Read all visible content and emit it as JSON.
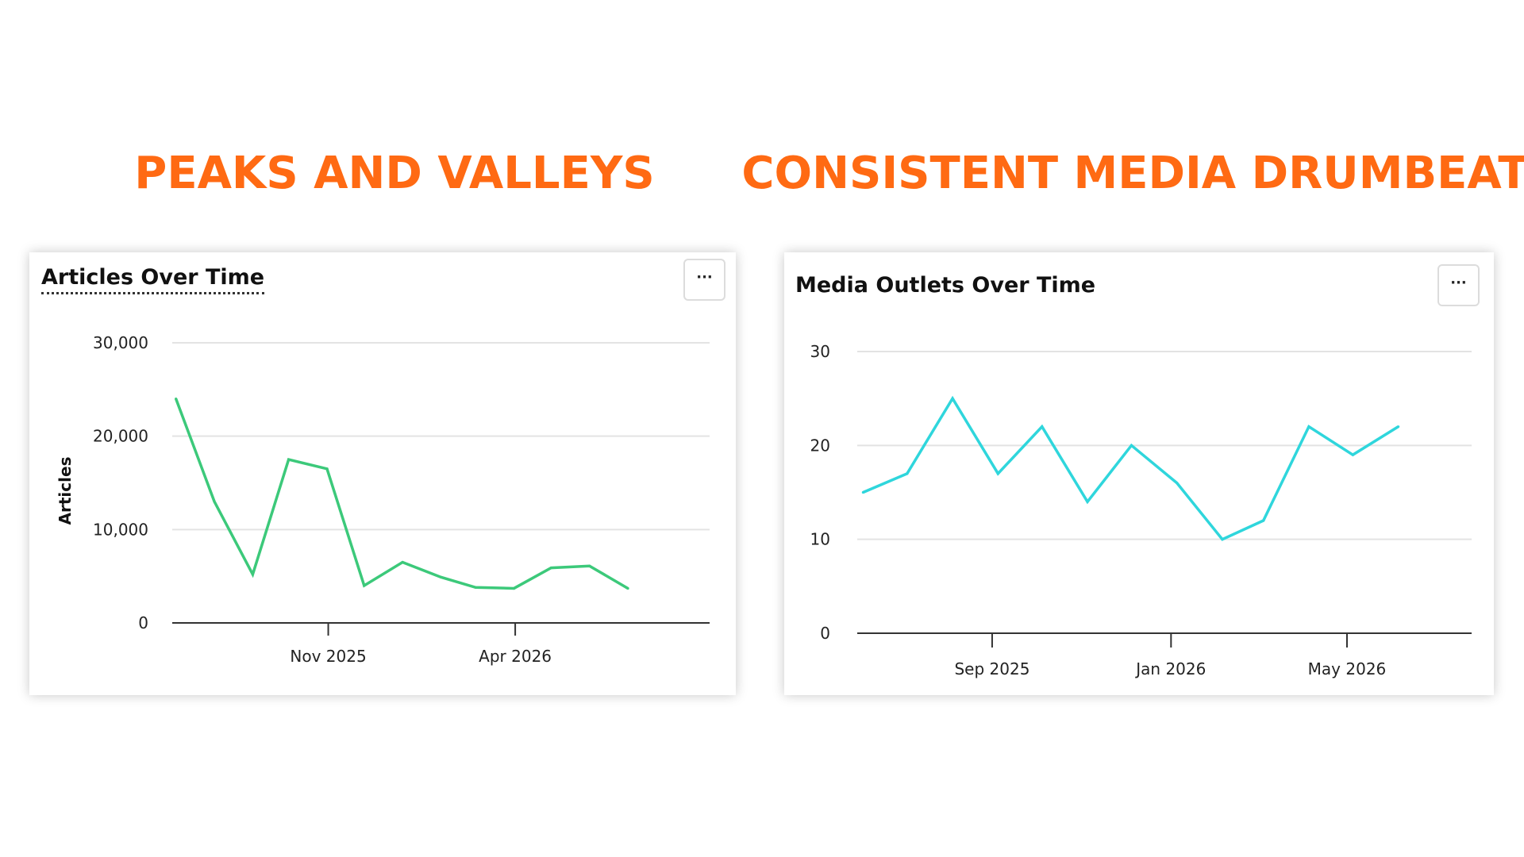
{
  "headlines": {
    "left": "PEAKS AND VALLEYS",
    "right": "CONSISTENT MEDIA DRUMBEAT"
  },
  "colors": {
    "headline": "#ff6a13",
    "grid": "#e3e3e3",
    "axis": "#333333"
  },
  "chart_data": [
    {
      "type": "line",
      "title": "Articles Over Time",
      "menu_label": "···",
      "ylabel": "Articles",
      "xlabel": "",
      "ylim": [
        0,
        30000
      ],
      "y_ticks": [
        0,
        10000,
        20000,
        30000
      ],
      "y_tick_labels": [
        "0",
        "10,000",
        "20,000",
        "30,000"
      ],
      "x_ticks": [
        "2025-11",
        "2026-04"
      ],
      "x_tick_labels": [
        "Nov 2025",
        "Apr 2026"
      ],
      "x_range": [
        "2025-06-28",
        "2026-09-05"
      ],
      "grid": true,
      "legend": "none",
      "series": [
        {
          "color": "#3cc97a",
          "points": [
            {
              "x": "2025-07-01",
              "y": 24000
            },
            {
              "x": "2025-08-01",
              "y": 13000
            },
            {
              "x": "2025-09-01",
              "y": 5200
            },
            {
              "x": "2025-09-30",
              "y": 17500
            },
            {
              "x": "2025-10-31",
              "y": 16500
            },
            {
              "x": "2025-11-30",
              "y": 4000
            },
            {
              "x": "2025-12-31",
              "y": 6500
            },
            {
              "x": "2026-01-31",
              "y": 4900
            },
            {
              "x": "2026-02-28",
              "y": 3800
            },
            {
              "x": "2026-03-31",
              "y": 3700
            },
            {
              "x": "2026-04-30",
              "y": 5900
            },
            {
              "x": "2026-05-31",
              "y": 6100
            },
            {
              "x": "2026-07-01",
              "y": 3700
            }
          ]
        }
      ]
    },
    {
      "type": "line",
      "title": "Media Outlets Over Time",
      "menu_label": "···",
      "ylabel": "",
      "xlabel": "",
      "ylim": [
        0,
        30
      ],
      "y_ticks": [
        0,
        10,
        20,
        30
      ],
      "y_tick_labels": [
        "0",
        "10",
        "20",
        "30"
      ],
      "x_ticks": [
        "2025-09",
        "2026-01",
        "2026-05"
      ],
      "x_tick_labels": [
        "Sep 2025",
        "Jan 2026",
        "May 2026"
      ],
      "x_range": [
        "2025-06-01",
        "2026-07-25"
      ],
      "grid": true,
      "legend": "none",
      "series": [
        {
          "color": "#2fd6dc",
          "points": [
            {
              "x": "2025-06-05",
              "y": 15
            },
            {
              "x": "2025-07-05",
              "y": 17
            },
            {
              "x": "2025-08-05",
              "y": 25
            },
            {
              "x": "2025-09-05",
              "y": 17
            },
            {
              "x": "2025-10-05",
              "y": 22
            },
            {
              "x": "2025-11-05",
              "y": 14
            },
            {
              "x": "2025-12-05",
              "y": 20
            },
            {
              "x": "2026-01-05",
              "y": 16
            },
            {
              "x": "2026-02-05",
              "y": 10
            },
            {
              "x": "2026-03-05",
              "y": 12
            },
            {
              "x": "2026-04-05",
              "y": 22
            },
            {
              "x": "2026-05-05",
              "y": 19
            },
            {
              "x": "2026-06-05",
              "y": 22
            }
          ]
        }
      ]
    }
  ]
}
